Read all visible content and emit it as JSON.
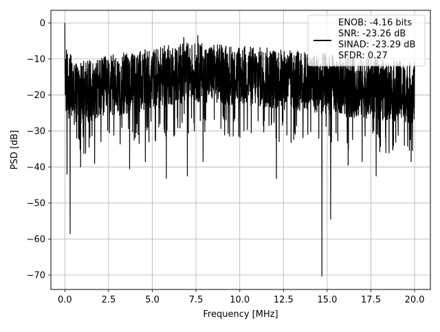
{
  "chart_data": {
    "type": "line",
    "xlabel": "Frequency [MHz]",
    "ylabel": "PSD [dB]",
    "xlim": [
      -0.8,
      20.9
    ],
    "ylim": [
      -74,
      3.5
    ],
    "xticks": [
      0.0,
      2.5,
      5.0,
      7.5,
      10.0,
      12.5,
      15.0,
      17.5,
      20.0
    ],
    "xtick_labels": [
      "0.0",
      "2.5",
      "5.0",
      "7.5",
      "10.0",
      "12.5",
      "15.0",
      "17.5",
      "20.0"
    ],
    "yticks": [
      0,
      -10,
      -20,
      -30,
      -40,
      -50,
      -60,
      -70
    ],
    "ytick_labels": [
      "0",
      "−10",
      "−20",
      "−30",
      "−40",
      "−50",
      "−60",
      "−70"
    ],
    "grid": true,
    "legend_position": "top-right",
    "series": [
      {
        "color": "#000000",
        "style": "noise-band",
        "x_range": [
          0.0,
          20.0
        ],
        "band_upper": [
          [
            0.0,
            -6
          ],
          [
            0.5,
            -10
          ],
          [
            1.0,
            -10.5
          ],
          [
            2.0,
            -9.5
          ],
          [
            3.0,
            -8.5
          ],
          [
            4.0,
            -8
          ],
          [
            5.0,
            -7
          ],
          [
            6.0,
            -6
          ],
          [
            7.0,
            -5.5
          ],
          [
            8.0,
            -5.5
          ],
          [
            9.0,
            -6
          ],
          [
            10.0,
            -6
          ],
          [
            11.0,
            -6.5
          ],
          [
            12.0,
            -7
          ],
          [
            13.0,
            -7.5
          ],
          [
            14.0,
            -8
          ],
          [
            15.0,
            -8.5
          ],
          [
            16.0,
            -9
          ],
          [
            17.0,
            -9.5
          ],
          [
            18.0,
            -10
          ],
          [
            19.0,
            -10.5
          ],
          [
            20.0,
            -11
          ]
        ],
        "band_lower": [
          [
            0.0,
            -28
          ],
          [
            0.5,
            -32
          ],
          [
            1.0,
            -31
          ],
          [
            2.0,
            -30
          ],
          [
            3.0,
            -29
          ],
          [
            4.0,
            -28
          ],
          [
            5.0,
            -27
          ],
          [
            6.0,
            -26
          ],
          [
            7.0,
            -25
          ],
          [
            8.0,
            -25
          ],
          [
            9.0,
            -25.5
          ],
          [
            10.0,
            -26
          ],
          [
            11.0,
            -26.5
          ],
          [
            12.0,
            -27
          ],
          [
            13.0,
            -27.5
          ],
          [
            14.0,
            -28
          ],
          [
            15.0,
            -28.5
          ],
          [
            16.0,
            -29
          ],
          [
            17.0,
            -29.5
          ],
          [
            18.0,
            -30
          ],
          [
            19.0,
            -30.5
          ],
          [
            20.0,
            -31
          ]
        ],
        "peaks": [
          {
            "x": 0.0,
            "y": 0.0
          },
          {
            "x": 6.8,
            "y": -4.0
          },
          {
            "x": 7.6,
            "y": -3.5
          }
        ],
        "dips": [
          {
            "x": 0.12,
            "y": -42
          },
          {
            "x": 0.3,
            "y": -58.5
          },
          {
            "x": 0.9,
            "y": -40
          },
          {
            "x": 1.7,
            "y": -39
          },
          {
            "x": 3.7,
            "y": -40.5
          },
          {
            "x": 4.6,
            "y": -38.5
          },
          {
            "x": 5.8,
            "y": -43.2
          },
          {
            "x": 7.0,
            "y": -42.5
          },
          {
            "x": 7.9,
            "y": -38.5
          },
          {
            "x": 12.1,
            "y": -43.2
          },
          {
            "x": 14.7,
            "y": -70.3
          },
          {
            "x": 15.2,
            "y": -54.5
          },
          {
            "x": 16.2,
            "y": -39.5
          },
          {
            "x": 17.0,
            "y": -38.5
          },
          {
            "x": 17.8,
            "y": -42.5
          },
          {
            "x": 19.8,
            "y": -38.5
          }
        ]
      }
    ],
    "legend_lines": [
      "ENOB: -4.16 bits",
      "SNR: -23.26 dB",
      "SINAD: -23.29 dB",
      "SFDR: 0.27"
    ]
  }
}
